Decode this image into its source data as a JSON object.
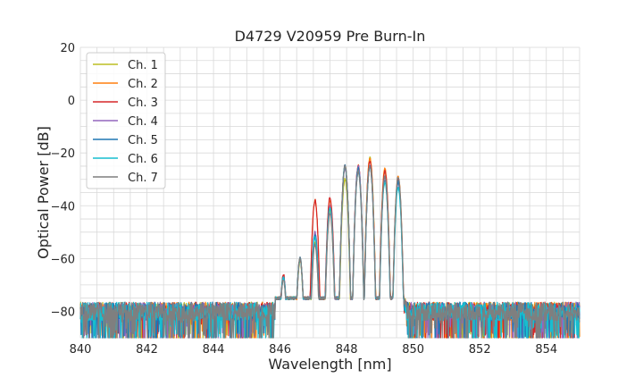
{
  "chart_data": {
    "type": "line",
    "title": "D4729 V20959 Pre Burn-In",
    "xlabel": "Wavelength [nm]",
    "ylabel": "Optical Power [dB]",
    "xlim": [
      840,
      855
    ],
    "ylim": [
      -90,
      20
    ],
    "xticks": [
      840,
      842,
      844,
      846,
      848,
      850,
      852,
      854
    ],
    "yticks": [
      20,
      0,
      -20,
      -40,
      -60,
      -80
    ],
    "grid": true,
    "legend_position": "top-left",
    "noise_floor_db": -80,
    "series": [
      {
        "name": "Ch. 1",
        "color": "#bcbd22",
        "peaks": [
          [
            846.1,
            -67
          ],
          [
            846.6,
            -61
          ],
          [
            847.05,
            -54
          ],
          [
            847.5,
            -42
          ],
          [
            847.95,
            -30
          ],
          [
            848.35,
            -25
          ],
          [
            848.7,
            -22
          ],
          [
            849.15,
            -27
          ],
          [
            849.55,
            -31
          ]
        ]
      },
      {
        "name": "Ch. 2",
        "color": "#ff7f0e",
        "peaks": [
          [
            846.1,
            -67
          ],
          [
            846.6,
            -60
          ],
          [
            847.05,
            -38
          ],
          [
            847.5,
            -38
          ],
          [
            847.95,
            -25
          ],
          [
            848.35,
            -25
          ],
          [
            848.7,
            -22
          ],
          [
            849.15,
            -26
          ],
          [
            849.55,
            -29
          ]
        ]
      },
      {
        "name": "Ch. 3",
        "color": "#d62728",
        "peaks": [
          [
            846.1,
            -66
          ],
          [
            846.6,
            -60
          ],
          [
            847.05,
            -38
          ],
          [
            847.5,
            -37
          ],
          [
            847.95,
            -25
          ],
          [
            848.35,
            -25
          ],
          [
            848.7,
            -23
          ],
          [
            849.15,
            -27
          ],
          [
            849.55,
            -30
          ]
        ]
      },
      {
        "name": "Ch. 4",
        "color": "#9467bd",
        "peaks": [
          [
            846.1,
            -67
          ],
          [
            846.6,
            -60
          ],
          [
            847.05,
            -50
          ],
          [
            847.5,
            -40
          ],
          [
            847.95,
            -26
          ],
          [
            848.35,
            -25
          ],
          [
            848.7,
            -25
          ],
          [
            849.15,
            -29
          ],
          [
            849.55,
            -31
          ]
        ]
      },
      {
        "name": "Ch. 5",
        "color": "#1f77b4",
        "peaks": [
          [
            846.1,
            -67
          ],
          [
            846.6,
            -60
          ],
          [
            847.05,
            -51
          ],
          [
            847.5,
            -41
          ],
          [
            847.95,
            -25
          ],
          [
            848.35,
            -26
          ],
          [
            848.7,
            -25
          ],
          [
            849.15,
            -30
          ],
          [
            849.55,
            -31
          ]
        ]
      },
      {
        "name": "Ch. 6",
        "color": "#17becf",
        "peaks": [
          [
            846.1,
            -67
          ],
          [
            846.6,
            -60
          ],
          [
            847.05,
            -52
          ],
          [
            847.5,
            -41
          ],
          [
            847.95,
            -25
          ],
          [
            848.35,
            -27
          ],
          [
            848.7,
            -25
          ],
          [
            849.15,
            -31
          ],
          [
            849.55,
            -33
          ]
        ]
      },
      {
        "name": "Ch. 7",
        "color": "#7f7f7f",
        "peaks": [
          [
            846.1,
            -68
          ],
          [
            846.6,
            -60
          ],
          [
            847.05,
            -55
          ],
          [
            847.5,
            -43
          ],
          [
            847.95,
            -25
          ],
          [
            848.35,
            -27
          ],
          [
            848.7,
            -25
          ],
          [
            849.15,
            -29
          ],
          [
            849.55,
            -29
          ]
        ]
      }
    ]
  }
}
